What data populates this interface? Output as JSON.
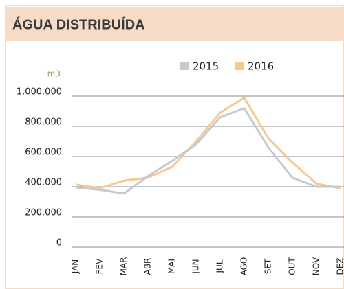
{
  "chart_data": {
    "type": "line",
    "title": "ÁGUA DISTRIBUÍDA",
    "y_axis_label": "m3",
    "categories": [
      "JAN",
      "FEV",
      "MAR",
      "ABR",
      "MAI",
      "JUN",
      "JUL",
      "AGO",
      "SET",
      "OUT",
      "NOV",
      "DEZ"
    ],
    "series": [
      {
        "name": "2015",
        "color": "#c4cad0",
        "values": [
          395000,
          380000,
          355000,
          470000,
          570000,
          680000,
          860000,
          920000,
          660000,
          460000,
          400000,
          400000
        ]
      },
      {
        "name": "2016",
        "color": "#f8c890",
        "values": [
          415000,
          390000,
          440000,
          460000,
          530000,
          700000,
          890000,
          990000,
          720000,
          560000,
          420000,
          390000
        ]
      }
    ],
    "ylim": [
      0,
      1000000
    ],
    "yticks": [
      0,
      {
        "value": 200000,
        "label": "200.000"
      },
      {
        "value": 400000,
        "label": "400.000"
      },
      {
        "value": 600000,
        "label": "600.000"
      },
      {
        "value": 800000,
        "label": "800.000"
      },
      {
        "value": 1000000,
        "label": "1.000.000"
      }
    ],
    "grid": true
  }
}
